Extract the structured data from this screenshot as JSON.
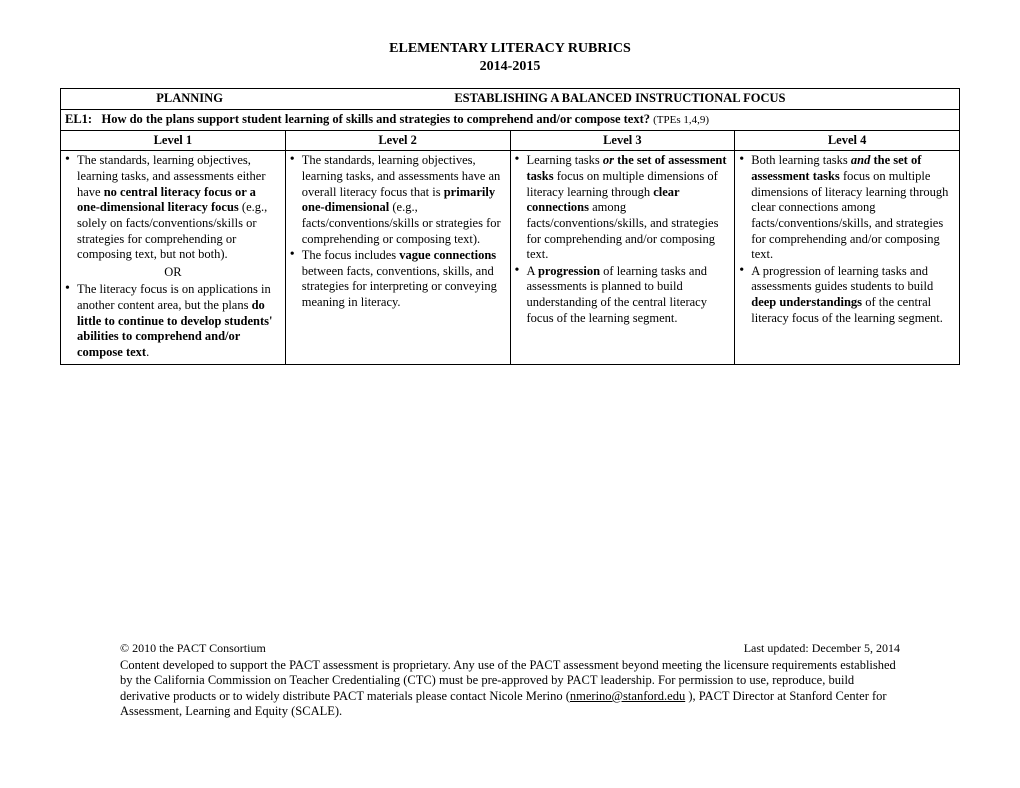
{
  "title": {
    "line1": "ELEMENTARY LITERACY RUBRICS",
    "line2": "2014-2015"
  },
  "header": {
    "planning": "PLANNING",
    "establishing": "ESTABLISHING A BALANCED INSTRUCTIONAL FOCUS",
    "question_prefix": "EL1:",
    "question_text": "How do the plans support student learning of skills and strategies to comprehend and/or compose text?",
    "tpes": "(TPEs 1,4,9)"
  },
  "levels": {
    "l1": "Level 1",
    "l2": "Level 2",
    "l3": "Level 3",
    "l4": "Level 4"
  },
  "cells": {
    "c1_b1_pre": "The standards, learning objectives, learning tasks, and assessments either have ",
    "c1_b1_bold1": "no central literacy focus or a one-dimensional literacy focus",
    "c1_b1_post": " (e.g., solely on facts/conventions/skills or strategies for comprehending or composing text, but not both).",
    "c1_or": "OR",
    "c1_b2_pre": "The literacy focus is on applications in another content area, but the plans ",
    "c1_b2_bold": "do little to continue to develop students' abilities to comprehend and/or compose text",
    "c1_b2_post": ".",
    "c2_b1_pre": "The standards, learning objectives, learning tasks, and assessments have an overall literacy focus that is ",
    "c2_b1_bold": "primarily one-dimensional",
    "c2_b1_post": " (e.g., facts/conventions/skills or strategies for comprehending or composing text).",
    "c2_b2_pre": "The focus includes ",
    "c2_b2_bold": "vague connections",
    "c2_b2_post": " between facts, conventions, skills, and strategies for interpreting or conveying meaning in literacy.",
    "c3_b1_pre": "Learning tasks ",
    "c3_b1_ital": "or",
    "c3_b1_mid": " the set of ",
    "c3_b1_bold1": "assessment tasks",
    "c3_b1_mid2": " focus on multiple dimensions of literacy learning through ",
    "c3_b1_bold2": "clear connections",
    "c3_b1_post": " among facts/conventions/skills, and strategies for comprehending and/or composing text.",
    "c3_b2_pre": "A ",
    "c3_b2_bold": "progression",
    "c3_b2_post": " of learning tasks and assessments is planned to build understanding of the central literacy focus of the learning segment.",
    "c4_b1_pre": "Both learning tasks ",
    "c4_b1_ital": "and",
    "c4_b1_mid": " the set of ",
    "c4_b1_bold1": "assessment tasks",
    "c4_b1_post1": " focus on multiple dimensions of literacy learning through clear connections among facts/conventions/skills, and strategies for comprehending and/or composing text.",
    "c4_b2_pre": "A progression of learning tasks and assessments guides students to build ",
    "c4_b2_bold": "deep understandings",
    "c4_b2_post": " of the central literacy focus of the learning segment."
  },
  "footer": {
    "copyright": "© 2010 the PACT Consortium",
    "updated": "Last updated:  December 5, 2014",
    "body_pre": "Content developed to support the PACT assessment is proprietary. Any use of the PACT assessment beyond meeting the licensure requirements established by the California Commission on Teacher Credentialing (CTC) must be  pre-approved by PACT leadership. For permission to use, reproduce, build derivative products or to widely distribute PACT materials please contact Nicole Merino (",
    "email": "nmerino@stanford.edu",
    "body_post": " ), PACT Director at Stanford Center for Assessment, Learning and Equity (SCALE)."
  }
}
